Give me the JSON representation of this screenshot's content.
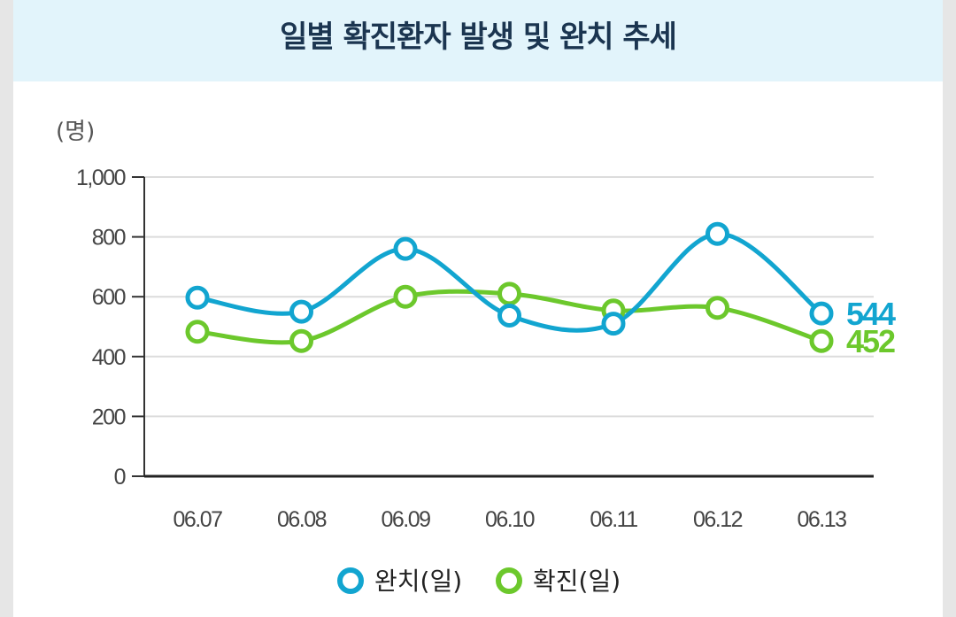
{
  "title": "일별 확진환자 발생 및 완치 추세",
  "chart_data": {
    "type": "line",
    "title": "일별 확진환자 발생 및 완치 추세",
    "unit_label": "(명)",
    "ylim": [
      0,
      1000
    ],
    "y_ticks": [
      0,
      200,
      400,
      600,
      800,
      1000
    ],
    "y_tick_labels": [
      "0",
      "200",
      "400",
      "600",
      "800",
      "1,000"
    ],
    "categories": [
      "06.07",
      "06.08",
      "06.09",
      "06.10",
      "06.11",
      "06.12",
      "06.13"
    ],
    "series": [
      {
        "name": "완치(일)",
        "color": "#12a5d0",
        "values": [
          597,
          550,
          760,
          537,
          510,
          810,
          544
        ],
        "end_label": "544"
      },
      {
        "name": "확진(일)",
        "color": "#6cc82c",
        "values": [
          483,
          452,
          600,
          610,
          554,
          563,
          452
        ],
        "end_label": "452"
      }
    ],
    "grid": true,
    "legend_position": "bottom-center"
  }
}
